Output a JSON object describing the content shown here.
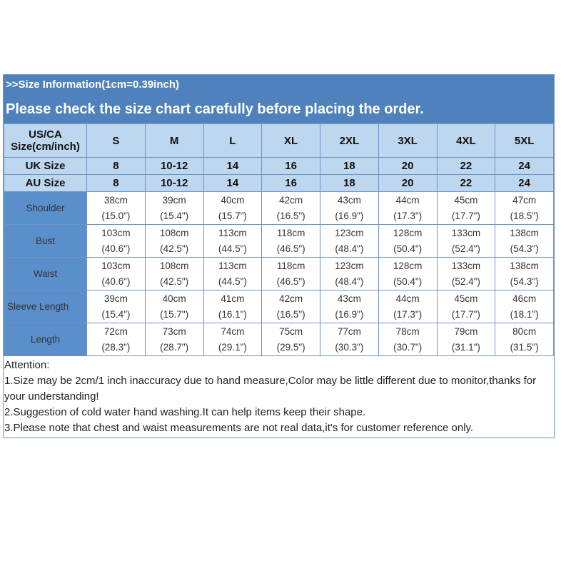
{
  "banner": {
    "line1": ">>Size Information(1cm=0.39inch)",
    "line2": "Please check the size chart carefully before placing the order."
  },
  "header": {
    "label_line1": "US/CA",
    "label_line2": "Size(cm/inch)",
    "sizes": [
      "S",
      "M",
      "L",
      "XL",
      "2XL",
      "3XL",
      "4XL",
      "5XL"
    ]
  },
  "size_rows": [
    {
      "label": "UK Size",
      "values": [
        "8",
        "10-12",
        "14",
        "16",
        "18",
        "20",
        "22",
        "24"
      ]
    },
    {
      "label": "AU Size",
      "values": [
        "8",
        "10-12",
        "14",
        "16",
        "18",
        "20",
        "22",
        "24"
      ]
    }
  ],
  "measure_rows": [
    {
      "label": "Shoulder",
      "cm": [
        "38cm",
        "39cm",
        "40cm",
        "42cm",
        "43cm",
        "44cm",
        "45cm",
        "47cm"
      ],
      "inch": [
        "(15.0\")",
        "(15.4\")",
        "(15.7\")",
        "(16.5\")",
        "(16.9\")",
        "(17.3\")",
        "(17.7\")",
        "(18.5\")"
      ]
    },
    {
      "label": "Bust",
      "cm": [
        "103cm",
        "108cm",
        "113cm",
        "118cm",
        "123cm",
        "128cm",
        "133cm",
        "138cm"
      ],
      "inch": [
        "(40.6\")",
        "(42.5\")",
        "(44.5\")",
        "(46.5\")",
        "(48.4\")",
        "(50.4\")",
        "(52.4\")",
        "(54.3\")"
      ]
    },
    {
      "label": "Waist",
      "cm": [
        "103cm",
        "108cm",
        "113cm",
        "118cm",
        "123cm",
        "128cm",
        "133cm",
        "138cm"
      ],
      "inch": [
        "(40.6\")",
        "(42.5\")",
        "(44.5\")",
        "(46.5\")",
        "(48.4\")",
        "(50.4\")",
        "(52.4\")",
        "(54.3\")"
      ]
    },
    {
      "label": "Sleeve Length",
      "cm": [
        "39cm",
        "40cm",
        "41cm",
        "42cm",
        "43cm",
        "44cm",
        "45cm",
        "46cm"
      ],
      "inch": [
        "(15.4\")",
        "(15.7\")",
        "(16.1\")",
        "(16.5\")",
        "(16.9\")",
        "(17.3\")",
        "(17.7\")",
        "(18.1\")"
      ]
    },
    {
      "label": "Length",
      "cm": [
        "72cm",
        "73cm",
        "74cm",
        "75cm",
        "77cm",
        "78cm",
        "79cm",
        "80cm"
      ],
      "inch": [
        "(28.3\")",
        "(28.7\")",
        "(29.1\")",
        "(29.5\")",
        "(30.3\")",
        "(30.7\")",
        "(31.1\")",
        "(31.5\")"
      ]
    }
  ],
  "notes": {
    "title": "Attention:",
    "items": [
      "1.Size may be 2cm/1 inch inaccuracy due to hand measure,Color may be little different due to monitor,thanks for your understanding!",
      "2.Suggestion of cold water hand washing.It can help items keep their shape.",
      "3.Please note that chest and waist measurements are not real data,it's for customer reference only."
    ]
  },
  "colors": {
    "banner": "#4f81bd",
    "header_bg": "#bdd7ee",
    "label_bg": "#5b8fcc",
    "border": "#6f93c3"
  }
}
